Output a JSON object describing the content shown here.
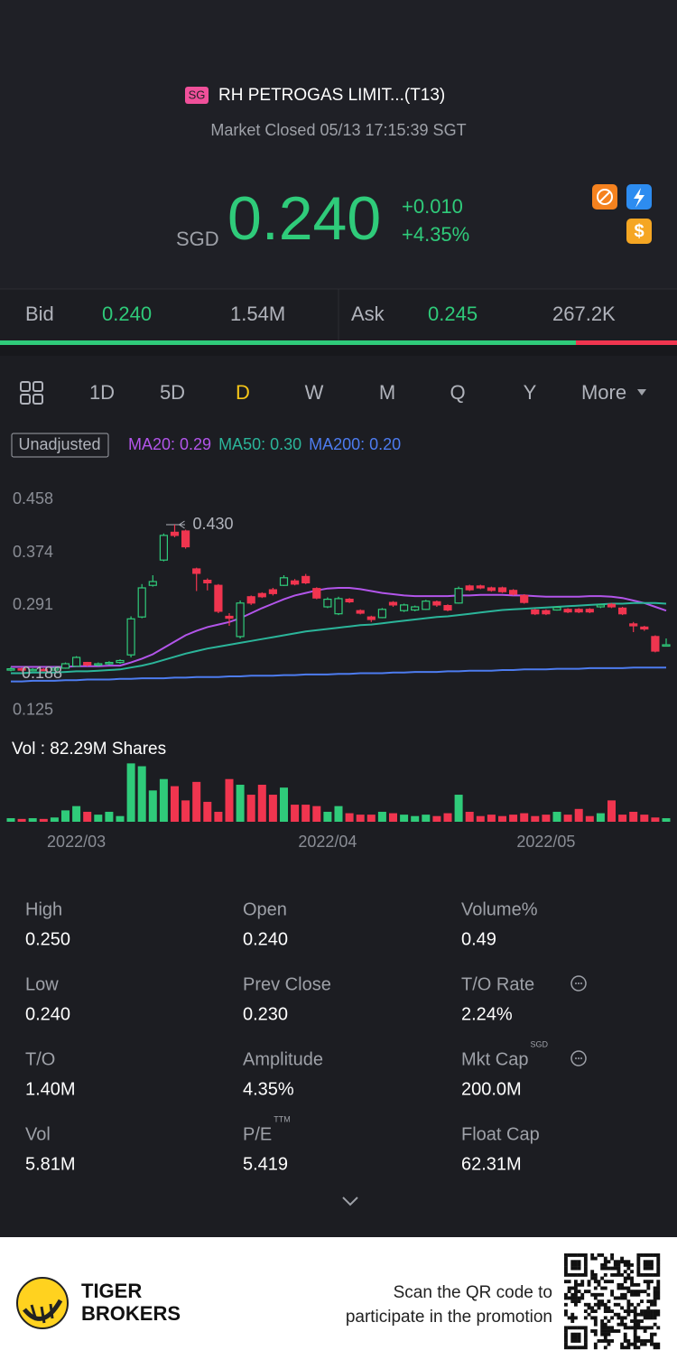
{
  "header": {
    "badge": "SG",
    "title": "RH PETROGAS LIMIT...(T13)",
    "status": "Market Closed 05/13 17:15:39 SGT"
  },
  "quote": {
    "currency": "SGD",
    "price": "0.240",
    "change": "+0.010",
    "change_pct": "+4.35%"
  },
  "order_book": {
    "bid_label": "Bid",
    "bid": "0.240",
    "bid_size": "1.54M",
    "ask_label": "Ask",
    "ask": "0.245",
    "ask_size": "267.2K"
  },
  "tabs": [
    "1D",
    "5D",
    "D",
    "W",
    "M",
    "Q",
    "Y",
    "More"
  ],
  "active_tab": 2,
  "adjust": "Unadjusted",
  "chart_data": {
    "type": "candlestick",
    "categories": [
      null,
      null,
      null,
      null,
      null,
      null,
      "2022/03",
      null,
      null,
      null,
      null,
      null,
      null,
      null,
      null,
      null,
      null,
      null,
      null,
      null,
      null,
      null,
      null,
      null,
      null,
      null,
      null,
      null,
      null,
      "2022/04",
      null,
      null,
      null,
      null,
      null,
      null,
      null,
      null,
      null,
      null,
      null,
      null,
      null,
      null,
      null,
      null,
      null,
      null,
      null,
      "2022/05",
      null,
      null,
      null,
      null,
      null,
      null,
      null,
      null,
      null,
      null,
      null
    ],
    "open": [
      0.2,
      0.202,
      0.2,
      0.201,
      0.2,
      0.203,
      0.206,
      0.212,
      0.208,
      0.21,
      0.212,
      0.224,
      0.284,
      0.334,
      0.374,
      0.418,
      0.42,
      0.36,
      0.342,
      0.334,
      0.285,
      0.253,
      0.316,
      0.321,
      0.327,
      0.334,
      0.341,
      0.348,
      0.329,
      0.3,
      0.289,
      0.312,
      0.294,
      0.284,
      0.283,
      0.307,
      0.294,
      0.295,
      0.296,
      0.308,
      0.302,
      0.306,
      0.333,
      0.333,
      0.33,
      0.33,
      0.326,
      0.318,
      0.295,
      0.294,
      0.295,
      0.296,
      0.296,
      0.296,
      0.3,
      0.304,
      0.298,
      0.273,
      0.268,
      0.253,
      0.24
    ],
    "high": [
      0.205,
      0.204,
      0.203,
      0.203,
      0.205,
      0.212,
      0.222,
      0.213,
      0.212,
      0.214,
      0.217,
      0.285,
      0.336,
      0.35,
      0.416,
      0.43,
      0.422,
      0.362,
      0.345,
      0.336,
      0.29,
      0.31,
      0.318,
      0.323,
      0.33,
      0.35,
      0.344,
      0.352,
      0.331,
      0.315,
      0.316,
      0.314,
      0.296,
      0.286,
      0.298,
      0.309,
      0.305,
      0.302,
      0.311,
      0.31,
      0.304,
      0.332,
      0.335,
      0.335,
      0.332,
      0.332,
      0.328,
      0.32,
      0.297,
      0.296,
      0.301,
      0.298,
      0.298,
      0.298,
      0.305,
      0.306,
      0.3,
      0.276,
      0.27,
      0.255,
      0.25
    ],
    "low": [
      0.198,
      0.198,
      0.198,
      0.199,
      0.199,
      0.202,
      0.205,
      0.206,
      0.206,
      0.208,
      0.21,
      0.22,
      0.282,
      0.332,
      0.372,
      0.41,
      0.392,
      0.325,
      0.326,
      0.29,
      0.27,
      0.25,
      0.303,
      0.314,
      0.318,
      0.333,
      0.334,
      0.336,
      0.312,
      0.298,
      0.287,
      0.306,
      0.288,
      0.276,
      0.282,
      0.3,
      0.292,
      0.293,
      0.295,
      0.3,
      0.293,
      0.305,
      0.325,
      0.328,
      0.324,
      0.322,
      0.318,
      0.305,
      0.287,
      0.287,
      0.294,
      0.29,
      0.29,
      0.29,
      0.298,
      0.298,
      0.287,
      0.26,
      0.262,
      0.228,
      0.24
    ],
    "close": [
      0.202,
      0.2,
      0.201,
      0.2,
      0.203,
      0.21,
      0.22,
      0.208,
      0.21,
      0.212,
      0.215,
      0.281,
      0.33,
      0.34,
      0.413,
      0.413,
      0.395,
      0.353,
      0.338,
      0.293,
      0.282,
      0.306,
      0.306,
      0.316,
      0.321,
      0.346,
      0.336,
      0.338,
      0.314,
      0.312,
      0.313,
      0.308,
      0.29,
      0.28,
      0.296,
      0.303,
      0.303,
      0.3,
      0.309,
      0.303,
      0.295,
      0.329,
      0.327,
      0.33,
      0.326,
      0.324,
      0.32,
      0.307,
      0.289,
      0.289,
      0.299,
      0.292,
      0.292,
      0.292,
      0.303,
      0.3,
      0.289,
      0.27,
      0.265,
      0.23,
      0.24
    ],
    "volume": [
      5,
      4,
      5,
      4,
      6,
      16,
      22,
      14,
      10,
      14,
      8,
      82,
      78,
      44,
      60,
      50,
      30,
      56,
      28,
      14,
      60,
      52,
      38,
      52,
      38,
      48,
      24,
      24,
      22,
      14,
      22,
      12,
      10,
      10,
      14,
      12,
      10,
      8,
      10,
      8,
      12,
      38,
      14,
      8,
      10,
      8,
      10,
      12,
      8,
      10,
      14,
      10,
      18,
      8,
      12,
      30,
      10,
      14,
      10,
      6,
      5
    ],
    "volume_title": "Vol  : 82.29M Shares",
    "volume_ylim": [
      0,
      85
    ],
    "up_color": "#2fcb7a",
    "down_color": "#f0354f",
    "series": [
      {
        "name": "MA20: 0.29",
        "color": "#b255ea",
        "values": [
          0.205,
          0.205,
          0.205,
          0.205,
          0.205,
          0.205,
          0.206,
          0.206,
          0.206,
          0.207,
          0.207,
          0.212,
          0.218,
          0.225,
          0.235,
          0.245,
          0.255,
          0.262,
          0.268,
          0.272,
          0.276,
          0.282,
          0.29,
          0.298,
          0.305,
          0.312,
          0.318,
          0.322,
          0.326,
          0.329,
          0.33,
          0.33,
          0.328,
          0.325,
          0.322,
          0.32,
          0.318,
          0.317,
          0.317,
          0.317,
          0.317,
          0.318,
          0.318,
          0.319,
          0.319,
          0.319,
          0.318,
          0.318,
          0.317,
          0.316,
          0.316,
          0.316,
          0.316,
          0.317,
          0.317,
          0.316,
          0.314,
          0.31,
          0.306,
          0.3,
          0.294
        ]
      },
      {
        "name": "MA50: 0.30",
        "color": "#2bb59a",
        "values": [
          0.195,
          0.195,
          0.196,
          0.196,
          0.196,
          0.197,
          0.198,
          0.198,
          0.199,
          0.2,
          0.201,
          0.204,
          0.207,
          0.211,
          0.216,
          0.221,
          0.226,
          0.23,
          0.234,
          0.237,
          0.24,
          0.243,
          0.246,
          0.249,
          0.252,
          0.255,
          0.258,
          0.261,
          0.263,
          0.265,
          0.267,
          0.269,
          0.271,
          0.272,
          0.274,
          0.276,
          0.278,
          0.28,
          0.282,
          0.284,
          0.285,
          0.287,
          0.289,
          0.291,
          0.293,
          0.295,
          0.296,
          0.297,
          0.298,
          0.299,
          0.3,
          0.301,
          0.302,
          0.303,
          0.304,
          0.305,
          0.305,
          0.306,
          0.306,
          0.306,
          0.305
        ]
      },
      {
        "name": "MA200: 0.20",
        "color": "#4d7cf0",
        "values": [
          0.182,
          0.182,
          0.183,
          0.183,
          0.183,
          0.184,
          0.184,
          0.185,
          0.185,
          0.185,
          0.186,
          0.186,
          0.187,
          0.187,
          0.187,
          0.188,
          0.188,
          0.189,
          0.189,
          0.189,
          0.19,
          0.19,
          0.191,
          0.191,
          0.191,
          0.192,
          0.192,
          0.193,
          0.193,
          0.193,
          0.194,
          0.194,
          0.195,
          0.195,
          0.195,
          0.196,
          0.196,
          0.197,
          0.197,
          0.197,
          0.198,
          0.198,
          0.199,
          0.199,
          0.199,
          0.2,
          0.2,
          0.201,
          0.201,
          0.201,
          0.202,
          0.202,
          0.202,
          0.203,
          0.203,
          0.203,
          0.203,
          0.204,
          0.204,
          0.204,
          0.204
        ]
      }
    ],
    "ylim": [
      0.125,
      0.458
    ],
    "yticks": [
      0.458,
      0.374,
      0.291,
      0.125
    ],
    "annotations": [
      {
        "text": "0.430"
      },
      {
        "text": "0.188"
      }
    ]
  },
  "stats": [
    {
      "label": "High",
      "value": "0.250"
    },
    {
      "label": "Open",
      "value": "0.240"
    },
    {
      "label": "Volume%",
      "value": "0.49"
    },
    {
      "label": "Low",
      "value": "0.240"
    },
    {
      "label": "Prev Close",
      "value": "0.230"
    },
    {
      "label": "T/O Rate",
      "value": "2.24%"
    },
    {
      "label": "T/O",
      "value": "1.40M"
    },
    {
      "label": "Amplitude",
      "value": "4.35%"
    },
    {
      "label": "Mkt Cap",
      "sup": "SGD",
      "value": "200.0M"
    },
    {
      "label": "Vol",
      "value": "5.81M"
    },
    {
      "label": "P/E",
      "sup": "TTM",
      "value": "5.419"
    },
    {
      "label": "Float Cap",
      "value": "62.31M"
    }
  ],
  "footer": {
    "brand": [
      "TIGER",
      "BROKERS"
    ],
    "promo": [
      "Scan the QR code to",
      "participate in the promotion"
    ]
  }
}
